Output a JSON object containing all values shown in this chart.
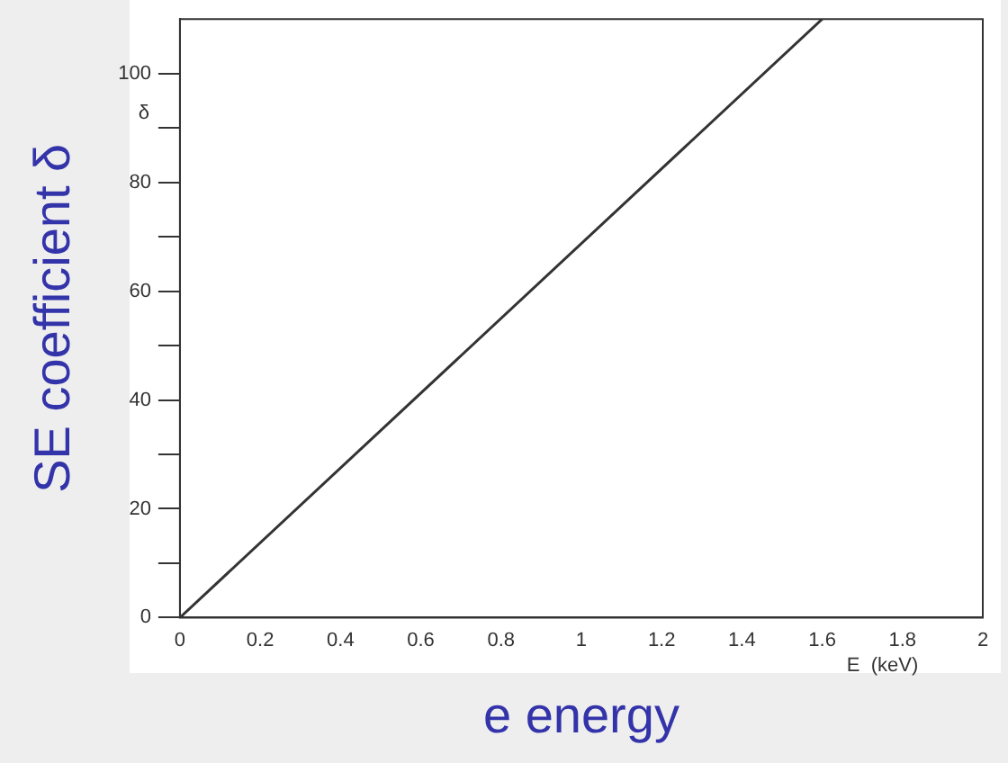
{
  "chart_data": {
    "type": "line",
    "xlabel": "e energy",
    "ylabel": "SE coefficient δ",
    "annotations": [
      "δ",
      "E  (keV)"
    ],
    "x": [
      0,
      1.6
    ],
    "series": [
      {
        "color": "#333333",
        "values": [
          0,
          110
        ]
      }
    ],
    "xlim": [
      0,
      2
    ],
    "xticks": [
      0,
      0.2,
      0.4,
      0.6,
      0.8,
      1,
      1.2,
      1.4,
      1.6,
      1.8,
      2
    ],
    "ylim": [
      0,
      110
    ],
    "yticks": [
      0,
      {
        "value": 10,
        "label": null
      },
      20,
      {
        "value": 30,
        "label": null
      },
      40,
      {
        "value": 50,
        "label": null
      },
      60,
      {
        "value": 70,
        "label": null
      },
      80,
      {
        "value": 90,
        "label": null
      },
      100
    ],
    "grid": false,
    "legend": false,
    "marker": "none",
    "line_style": "solid"
  }
}
